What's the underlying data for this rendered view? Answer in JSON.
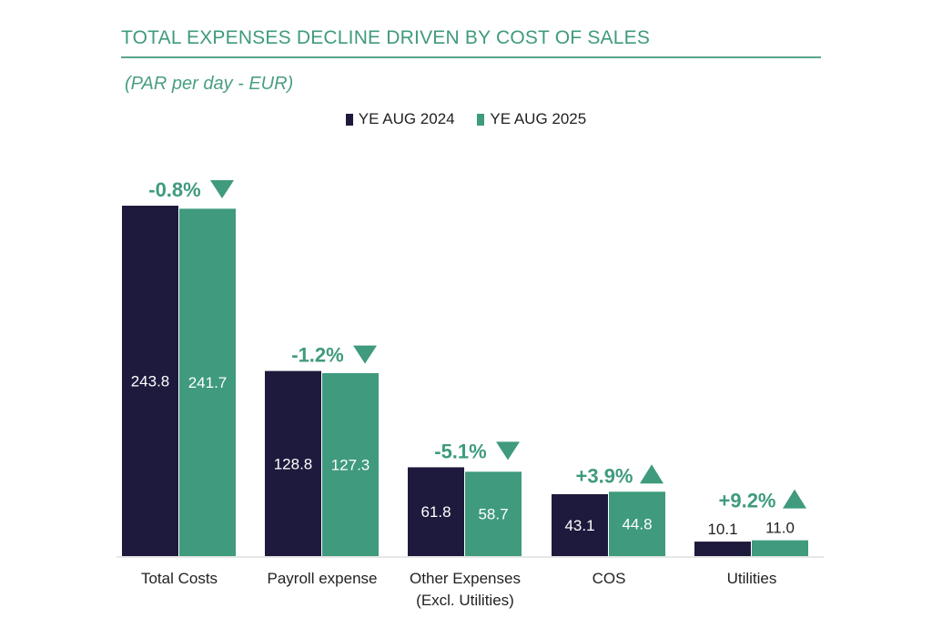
{
  "chart_data": {
    "type": "bar",
    "title": "TOTAL EXPENSES DECLINE DRIVEN BY COST OF SALES",
    "subtitle": "(PAR per day - EUR)",
    "xlabel": "",
    "ylabel": "",
    "ylim": [
      0,
      250
    ],
    "grid": false,
    "legend_position": "top-center",
    "categories": [
      "Total Costs",
      "Payroll expense",
      "Other Expenses\n(Excl. Utilities)",
      "COS",
      "Utilities"
    ],
    "category_lines": [
      [
        "Total Costs"
      ],
      [
        "Payroll expense"
      ],
      [
        "Other Expenses",
        "(Excl. Utilities)"
      ],
      [
        "COS"
      ],
      [
        "Utilities"
      ]
    ],
    "series": [
      {
        "name": "YE AUG 2024",
        "color": "#1e1a3d",
        "values": [
          243.8,
          128.8,
          61.8,
          43.1,
          10.1
        ],
        "labels": [
          "243.8",
          "128.8",
          "61.8",
          "43.1",
          "10.1"
        ]
      },
      {
        "name": "YE AUG 2025",
        "color": "#3f9a7e",
        "values": [
          241.7,
          127.3,
          58.7,
          44.8,
          11.0
        ],
        "labels": [
          "241.7",
          "127.3",
          "58.7",
          "44.8",
          "11.0"
        ]
      }
    ],
    "annotations": [
      {
        "text": "-0.8%",
        "direction": "down"
      },
      {
        "text": "-1.2%",
        "direction": "down"
      },
      {
        "text": "-5.1%",
        "direction": "down"
      },
      {
        "text": "+3.9%",
        "direction": "up"
      },
      {
        "text": "+9.2%",
        "direction": "up"
      }
    ]
  },
  "colors": {
    "accent": "#3f9a7e",
    "dark": "#1e1a3d",
    "axis": "#cfcfcf"
  }
}
